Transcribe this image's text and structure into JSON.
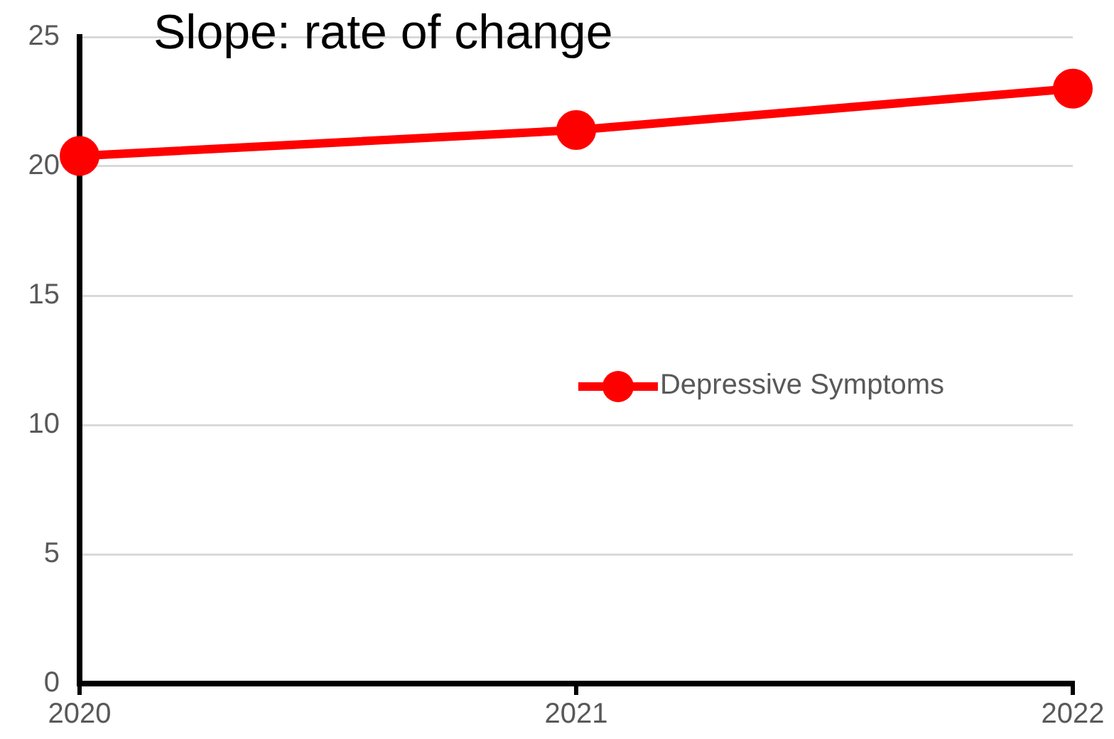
{
  "chart_data": {
    "type": "line",
    "title": "Slope: rate of change",
    "x": [
      2020,
      2021,
      2022
    ],
    "series": [
      {
        "name": "Depressive Symptoms",
        "color": "#ff0000",
        "values": [
          20.4,
          21.4,
          23.0
        ]
      }
    ],
    "xlim": [
      2020,
      2022
    ],
    "xticks": [
      2020,
      2021,
      2022
    ],
    "ylim": [
      0,
      25
    ],
    "yticks": [
      0,
      5,
      10,
      15,
      20,
      25
    ],
    "grid": "y",
    "legend": "center",
    "marker": "circle",
    "line_style": "solid"
  }
}
